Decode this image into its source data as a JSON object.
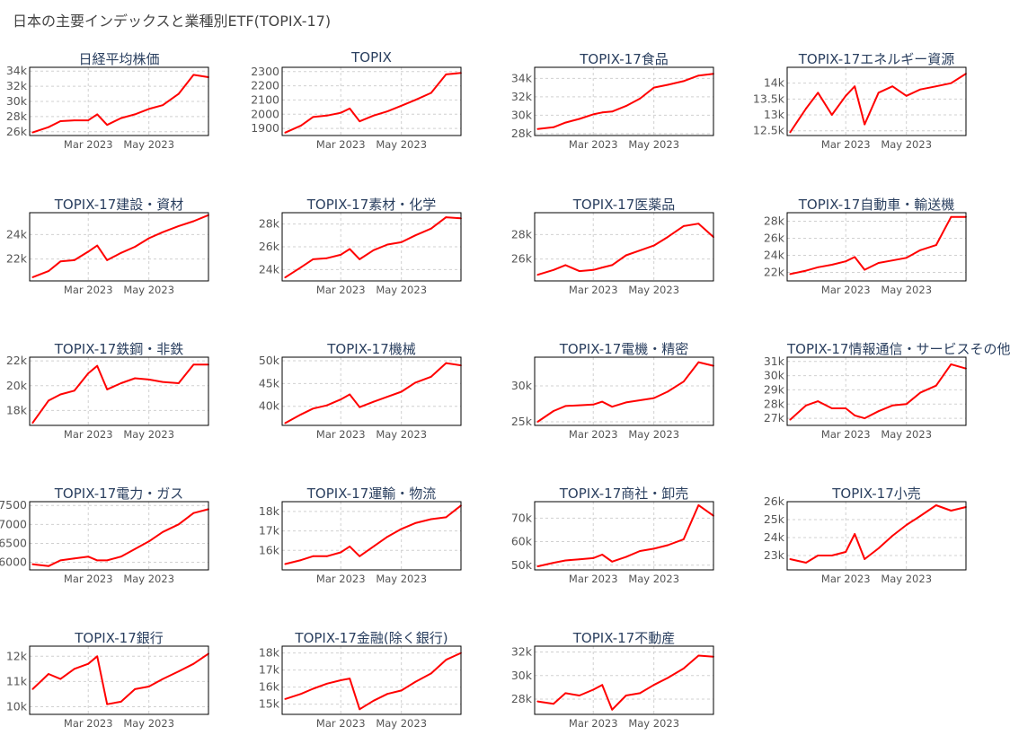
{
  "title": "日本の主要インデックスと業種別ETF(TOPIX-17)",
  "colors": {
    "line": "#ff0000",
    "grid": "#d0d0d0",
    "frame": "#000000"
  },
  "chart_data": [
    {
      "type": "line",
      "title": "日経平均株価",
      "ylim": [
        25500,
        34500
      ],
      "yticks": [
        26000,
        28000,
        30000,
        32000,
        34000
      ],
      "yticklabels": [
        "26k",
        "28k",
        "30k",
        "32k",
        "34k"
      ],
      "x": [
        "2023-01-04",
        "2023-01-20",
        "2023-02-01",
        "2023-02-15",
        "2023-03-01",
        "2023-03-10",
        "2023-03-20",
        "2023-04-03",
        "2023-04-17",
        "2023-05-01",
        "2023-05-15",
        "2023-05-31",
        "2023-06-15",
        "2023-06-30"
      ],
      "values": [
        25900,
        26600,
        27400,
        27500,
        27500,
        28300,
        26900,
        27800,
        28300,
        29000,
        29500,
        31000,
        33500,
        33200
      ],
      "xticks": [
        "2023-03-01",
        "2023-05-01"
      ],
      "xticklabels": [
        "Mar 2023",
        "May 2023"
      ]
    },
    {
      "type": "line",
      "title": "TOPIX",
      "ylim": [
        1850,
        2330
      ],
      "yticks": [
        1900,
        2000,
        2100,
        2200,
        2300
      ],
      "yticklabels": [
        "1900",
        "2000",
        "2100",
        "2200",
        "2300"
      ],
      "x": [
        "2023-01-04",
        "2023-01-20",
        "2023-02-01",
        "2023-02-15",
        "2023-03-01",
        "2023-03-10",
        "2023-03-20",
        "2023-04-03",
        "2023-04-17",
        "2023-05-01",
        "2023-05-15",
        "2023-05-31",
        "2023-06-15",
        "2023-06-30"
      ],
      "values": [
        1870,
        1920,
        1980,
        1990,
        2010,
        2040,
        1950,
        1990,
        2020,
        2060,
        2100,
        2150,
        2280,
        2290
      ],
      "xticks": [
        "2023-03-01",
        "2023-05-01"
      ],
      "xticklabels": [
        "Mar 2023",
        "May 2023"
      ]
    },
    {
      "type": "line",
      "title": "TOPIX-17食品",
      "ylim": [
        27800,
        35200
      ],
      "yticks": [
        28000,
        30000,
        32000,
        34000
      ],
      "yticklabels": [
        "28k",
        "30k",
        "32k",
        "34k"
      ],
      "x": [
        "2023-01-04",
        "2023-01-20",
        "2023-02-01",
        "2023-02-15",
        "2023-03-01",
        "2023-03-10",
        "2023-03-20",
        "2023-04-03",
        "2023-04-17",
        "2023-05-01",
        "2023-05-15",
        "2023-05-31",
        "2023-06-15",
        "2023-06-30"
      ],
      "values": [
        28500,
        28700,
        29200,
        29600,
        30100,
        30300,
        30400,
        31000,
        31800,
        33000,
        33300,
        33700,
        34300,
        34500
      ],
      "xticks": [
        "2023-03-01",
        "2023-05-01"
      ],
      "xticklabels": [
        "Mar 2023",
        "May 2023"
      ]
    },
    {
      "type": "line",
      "title": "TOPIX-17エネルギー資源",
      "ylim": [
        12350,
        14500
      ],
      "yticks": [
        12500,
        13000,
        13500,
        14000
      ],
      "yticklabels": [
        "12.5k",
        "13k",
        "13.5k",
        "14k"
      ],
      "x": [
        "2023-01-04",
        "2023-01-20",
        "2023-02-01",
        "2023-02-15",
        "2023-03-01",
        "2023-03-10",
        "2023-03-20",
        "2023-04-03",
        "2023-04-17",
        "2023-05-01",
        "2023-05-15",
        "2023-05-31",
        "2023-06-15",
        "2023-06-30"
      ],
      "values": [
        12450,
        13200,
        13700,
        13000,
        13600,
        13900,
        12700,
        13700,
        13900,
        13600,
        13800,
        13900,
        14000,
        14300
      ],
      "xticks": [
        "2023-03-01",
        "2023-05-01"
      ],
      "xticklabels": [
        "Mar 2023",
        "May 2023"
      ]
    },
    {
      "type": "line",
      "title": "TOPIX-17建設・資材",
      "ylim": [
        20200,
        25800
      ],
      "yticks": [
        22000,
        24000
      ],
      "yticklabels": [
        "22k",
        "24k"
      ],
      "x": [
        "2023-01-04",
        "2023-01-20",
        "2023-02-01",
        "2023-02-15",
        "2023-03-01",
        "2023-03-10",
        "2023-03-20",
        "2023-04-03",
        "2023-04-17",
        "2023-05-01",
        "2023-05-15",
        "2023-05-31",
        "2023-06-15",
        "2023-06-30"
      ],
      "values": [
        20500,
        21000,
        21800,
        21900,
        22600,
        23100,
        21900,
        22500,
        23000,
        23700,
        24200,
        24700,
        25100,
        25600
      ],
      "xticks": [
        "2023-03-01",
        "2023-05-01"
      ],
      "xticklabels": [
        "Mar 2023",
        "May 2023"
      ]
    },
    {
      "type": "line",
      "title": "TOPIX-17素材・化学",
      "ylim": [
        23000,
        29000
      ],
      "yticks": [
        24000,
        26000,
        28000
      ],
      "yticklabels": [
        "24k",
        "26k",
        "28k"
      ],
      "x": [
        "2023-01-04",
        "2023-01-20",
        "2023-02-01",
        "2023-02-15",
        "2023-03-01",
        "2023-03-10",
        "2023-03-20",
        "2023-04-03",
        "2023-04-17",
        "2023-05-01",
        "2023-05-15",
        "2023-05-31",
        "2023-06-15",
        "2023-06-30"
      ],
      "values": [
        23300,
        24200,
        24900,
        25000,
        25300,
        25800,
        24900,
        25700,
        26200,
        26400,
        27000,
        27600,
        28600,
        28500
      ],
      "xticks": [
        "2023-03-01",
        "2023-05-01"
      ],
      "xticklabels": [
        "Mar 2023",
        "May 2023"
      ]
    },
    {
      "type": "line",
      "title": "TOPIX-17医薬品",
      "ylim": [
        24200,
        29800
      ],
      "yticks": [
        26000,
        28000
      ],
      "yticklabels": [
        "26k",
        "28k"
      ],
      "x": [
        "2023-01-04",
        "2023-01-20",
        "2023-02-01",
        "2023-02-15",
        "2023-03-01",
        "2023-03-10",
        "2023-03-20",
        "2023-04-03",
        "2023-04-17",
        "2023-05-01",
        "2023-05-15",
        "2023-05-31",
        "2023-06-15",
        "2023-06-30"
      ],
      "values": [
        24700,
        25100,
        25500,
        25000,
        25100,
        25300,
        25500,
        26300,
        26700,
        27100,
        27800,
        28700,
        28900,
        27800
      ],
      "xticks": [
        "2023-03-01",
        "2023-05-01"
      ],
      "xticklabels": [
        "Mar 2023",
        "May 2023"
      ]
    },
    {
      "type": "line",
      "title": "TOPIX-17自動車・輸送機",
      "ylim": [
        21000,
        29000
      ],
      "yticks": [
        22000,
        24000,
        26000,
        28000
      ],
      "yticklabels": [
        "22k",
        "24k",
        "26k",
        "28k"
      ],
      "x": [
        "2023-01-04",
        "2023-01-20",
        "2023-02-01",
        "2023-02-15",
        "2023-03-01",
        "2023-03-10",
        "2023-03-20",
        "2023-04-03",
        "2023-04-17",
        "2023-05-01",
        "2023-05-15",
        "2023-05-31",
        "2023-06-15",
        "2023-06-30"
      ],
      "values": [
        21800,
        22200,
        22600,
        22900,
        23300,
        23800,
        22300,
        23100,
        23400,
        23700,
        24600,
        25200,
        28500,
        28500
      ],
      "xticks": [
        "2023-03-01",
        "2023-05-01"
      ],
      "xticklabels": [
        "Mar 2023",
        "May 2023"
      ]
    },
    {
      "type": "line",
      "title": "TOPIX-17鉄鋼・非鉄",
      "ylim": [
        16800,
        22300
      ],
      "yticks": [
        18000,
        20000,
        22000
      ],
      "yticklabels": [
        "18k",
        "20k",
        "22k"
      ],
      "x": [
        "2023-01-04",
        "2023-01-20",
        "2023-02-01",
        "2023-02-15",
        "2023-03-01",
        "2023-03-10",
        "2023-03-20",
        "2023-04-03",
        "2023-04-17",
        "2023-05-01",
        "2023-05-15",
        "2023-05-31",
        "2023-06-15",
        "2023-06-30"
      ],
      "values": [
        17000,
        18800,
        19300,
        19600,
        21000,
        21600,
        19700,
        20200,
        20600,
        20500,
        20300,
        20200,
        21700,
        21700
      ],
      "xticks": [
        "2023-03-01",
        "2023-05-01"
      ],
      "xticklabels": [
        "Mar 2023",
        "May 2023"
      ]
    },
    {
      "type": "line",
      "title": "TOPIX-17機械",
      "ylim": [
        35800,
        50800
      ],
      "yticks": [
        40000,
        45000,
        50000
      ],
      "yticklabels": [
        "40k",
        "45k",
        "50k"
      ],
      "x": [
        "2023-01-04",
        "2023-01-20",
        "2023-02-01",
        "2023-02-15",
        "2023-03-01",
        "2023-03-10",
        "2023-03-20",
        "2023-04-03",
        "2023-04-17",
        "2023-05-01",
        "2023-05-15",
        "2023-05-31",
        "2023-06-15",
        "2023-06-30"
      ],
      "values": [
        36300,
        38200,
        39500,
        40200,
        41500,
        42600,
        39800,
        41000,
        42100,
        43200,
        45200,
        46500,
        49500,
        49000
      ],
      "xticks": [
        "2023-03-01",
        "2023-05-01"
      ],
      "xticklabels": [
        "Mar 2023",
        "May 2023"
      ]
    },
    {
      "type": "line",
      "title": "TOPIX-17電機・精密",
      "ylim": [
        24500,
        34000
      ],
      "yticks": [
        25000,
        30000
      ],
      "yticklabels": [
        "25k",
        "30k"
      ],
      "x": [
        "2023-01-04",
        "2023-01-20",
        "2023-02-01",
        "2023-02-15",
        "2023-03-01",
        "2023-03-10",
        "2023-03-20",
        "2023-04-03",
        "2023-04-17",
        "2023-05-01",
        "2023-05-15",
        "2023-05-31",
        "2023-06-15",
        "2023-06-30"
      ],
      "values": [
        25000,
        26500,
        27200,
        27300,
        27400,
        27800,
        27100,
        27700,
        28000,
        28300,
        29200,
        30600,
        33300,
        32800
      ],
      "xticks": [
        "2023-03-01",
        "2023-05-01"
      ],
      "xticklabels": [
        "Mar 2023",
        "May 2023"
      ]
    },
    {
      "type": "line",
      "title": "TOPIX-17情報通信・サービスその他",
      "ylim": [
        26500,
        31300
      ],
      "yticks": [
        27000,
        28000,
        29000,
        30000,
        31000
      ],
      "yticklabels": [
        "27k",
        "28k",
        "29k",
        "30k",
        "31k"
      ],
      "x": [
        "2023-01-04",
        "2023-01-20",
        "2023-02-01",
        "2023-02-15",
        "2023-03-01",
        "2023-03-10",
        "2023-03-20",
        "2023-04-03",
        "2023-04-17",
        "2023-05-01",
        "2023-05-15",
        "2023-05-31",
        "2023-06-15",
        "2023-06-30"
      ],
      "values": [
        26900,
        27900,
        28200,
        27700,
        27700,
        27200,
        27000,
        27500,
        27900,
        28000,
        28800,
        29300,
        30800,
        30500
      ],
      "xticks": [
        "2023-03-01",
        "2023-05-01"
      ],
      "xticklabels": [
        "Mar 2023",
        "May 2023"
      ]
    },
    {
      "type": "line",
      "title": "TOPIX-17電力・ガス",
      "ylim": [
        5800,
        7600
      ],
      "yticks": [
        6000,
        6500,
        7000,
        7500
      ],
      "yticklabels": [
        "6000",
        "6500",
        "7000",
        "7500"
      ],
      "x": [
        "2023-01-04",
        "2023-01-20",
        "2023-02-01",
        "2023-02-15",
        "2023-03-01",
        "2023-03-10",
        "2023-03-20",
        "2023-04-03",
        "2023-04-17",
        "2023-05-01",
        "2023-05-15",
        "2023-05-31",
        "2023-06-15",
        "2023-06-30"
      ],
      "values": [
        5950,
        5900,
        6050,
        6100,
        6150,
        6050,
        6050,
        6150,
        6350,
        6550,
        6800,
        7000,
        7300,
        7400
      ],
      "xticks": [
        "2023-03-01",
        "2023-05-01"
      ],
      "xticklabels": [
        "Mar 2023",
        "May 2023"
      ]
    },
    {
      "type": "line",
      "title": "TOPIX-17運輸・物流",
      "ylim": [
        15000,
        18500
      ],
      "yticks": [
        16000,
        17000,
        18000
      ],
      "yticklabels": [
        "16k",
        "17k",
        "18k"
      ],
      "x": [
        "2023-01-04",
        "2023-01-20",
        "2023-02-01",
        "2023-02-15",
        "2023-03-01",
        "2023-03-10",
        "2023-03-20",
        "2023-04-03",
        "2023-04-17",
        "2023-05-01",
        "2023-05-15",
        "2023-05-31",
        "2023-06-15",
        "2023-06-30"
      ],
      "values": [
        15300,
        15500,
        15700,
        15700,
        15900,
        16200,
        15700,
        16200,
        16700,
        17100,
        17400,
        17600,
        17700,
        18300
      ],
      "xticks": [
        "2023-03-01",
        "2023-05-01"
      ],
      "xticklabels": [
        "Mar 2023",
        "May 2023"
      ]
    },
    {
      "type": "line",
      "title": "TOPIX-17商社・卸売",
      "ylim": [
        48000,
        77000
      ],
      "yticks": [
        50000,
        60000,
        70000
      ],
      "yticklabels": [
        "50k",
        "60k",
        "70k"
      ],
      "x": [
        "2023-01-04",
        "2023-01-20",
        "2023-02-01",
        "2023-02-15",
        "2023-03-01",
        "2023-03-10",
        "2023-03-20",
        "2023-04-03",
        "2023-04-17",
        "2023-05-01",
        "2023-05-15",
        "2023-05-31",
        "2023-06-15",
        "2023-06-30"
      ],
      "values": [
        49500,
        51000,
        52000,
        52500,
        53000,
        54500,
        51500,
        53500,
        56000,
        57000,
        58500,
        61000,
        75500,
        71000
      ],
      "xticks": [
        "2023-03-01",
        "2023-05-01"
      ],
      "xticklabels": [
        "Mar 2023",
        "May 2023"
      ]
    },
    {
      "type": "line",
      "title": "TOPIX-17小売",
      "ylim": [
        22200,
        26000
      ],
      "yticks": [
        23000,
        24000,
        25000,
        26000
      ],
      "yticklabels": [
        "23k",
        "24k",
        "25k",
        "26k"
      ],
      "x": [
        "2023-01-04",
        "2023-01-20",
        "2023-02-01",
        "2023-02-15",
        "2023-03-01",
        "2023-03-10",
        "2023-03-20",
        "2023-04-03",
        "2023-04-17",
        "2023-05-01",
        "2023-05-15",
        "2023-05-31",
        "2023-06-15",
        "2023-06-30"
      ],
      "values": [
        22800,
        22600,
        23000,
        23000,
        23200,
        24200,
        22800,
        23400,
        24100,
        24700,
        25200,
        25800,
        25500,
        25700
      ],
      "xticks": [
        "2023-03-01",
        "2023-05-01"
      ],
      "xticklabels": [
        "Mar 2023",
        "May 2023"
      ]
    },
    {
      "type": "line",
      "title": "TOPIX-17銀行",
      "ylim": [
        9700,
        12400
      ],
      "yticks": [
        10000,
        11000,
        12000
      ],
      "yticklabels": [
        "10k",
        "11k",
        "12k"
      ],
      "x": [
        "2023-01-04",
        "2023-01-20",
        "2023-02-01",
        "2023-02-15",
        "2023-03-01",
        "2023-03-10",
        "2023-03-20",
        "2023-04-03",
        "2023-04-17",
        "2023-05-01",
        "2023-05-15",
        "2023-05-31",
        "2023-06-15",
        "2023-06-30"
      ],
      "values": [
        10700,
        11300,
        11100,
        11500,
        11700,
        12000,
        10100,
        10200,
        10700,
        10800,
        11100,
        11400,
        11700,
        12100
      ],
      "xticks": [
        "2023-03-01",
        "2023-05-01"
      ],
      "xticklabels": [
        "Mar 2023",
        "May 2023"
      ]
    },
    {
      "type": "line",
      "title": "TOPIX-17金融(除く銀行)",
      "ylim": [
        14400,
        18400
      ],
      "yticks": [
        15000,
        16000,
        17000,
        18000
      ],
      "yticklabels": [
        "15k",
        "16k",
        "17k",
        "18k"
      ],
      "x": [
        "2023-01-04",
        "2023-01-20",
        "2023-02-01",
        "2023-02-15",
        "2023-03-01",
        "2023-03-10",
        "2023-03-20",
        "2023-04-03",
        "2023-04-17",
        "2023-05-01",
        "2023-05-15",
        "2023-05-31",
        "2023-06-15",
        "2023-06-30"
      ],
      "values": [
        15300,
        15600,
        15900,
        16200,
        16400,
        16500,
        14700,
        15200,
        15600,
        15800,
        16300,
        16800,
        17600,
        18000
      ],
      "xticks": [
        "2023-03-01",
        "2023-05-01"
      ],
      "xticklabels": [
        "Mar 2023",
        "May 2023"
      ]
    },
    {
      "type": "line",
      "title": "TOPIX-17不動産",
      "ylim": [
        26700,
        32500
      ],
      "yticks": [
        28000,
        30000,
        32000
      ],
      "yticklabels": [
        "28k",
        "30k",
        "32k"
      ],
      "x": [
        "2023-01-04",
        "2023-01-20",
        "2023-02-01",
        "2023-02-15",
        "2023-03-01",
        "2023-03-10",
        "2023-03-20",
        "2023-04-03",
        "2023-04-17",
        "2023-05-01",
        "2023-05-15",
        "2023-05-31",
        "2023-06-15",
        "2023-06-30"
      ],
      "values": [
        27800,
        27600,
        28500,
        28300,
        28800,
        29200,
        27100,
        28300,
        28500,
        29200,
        29800,
        30600,
        31700,
        31600
      ],
      "xticks": [
        "2023-03-01",
        "2023-05-01"
      ],
      "xticklabels": [
        "Mar 2023",
        "May 2023"
      ]
    }
  ]
}
